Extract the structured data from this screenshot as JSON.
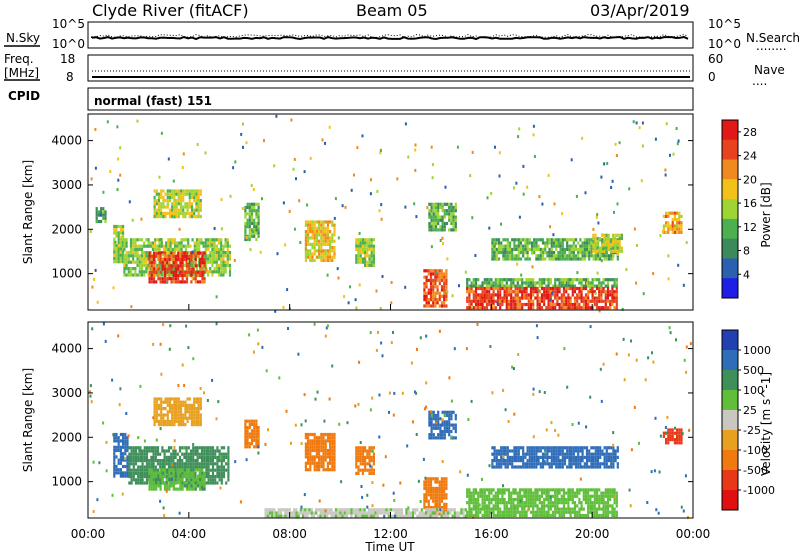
{
  "header": {
    "station": "Clyde River (fitACF)",
    "beam": "Beam 05",
    "date": "03/Apr/2019"
  },
  "strip_panels": {
    "nsky_label": "N.Sky",
    "nsearch_label": "N.Search",
    "nsearch_legend": "........",
    "log_top": "10^5",
    "log_bottom": "10^0",
    "freq_label_1": "Freq.",
    "freq_label_2": "[MHz]",
    "freq_ticks": [
      "18",
      "8"
    ],
    "nave_label": "Nave",
    "nave_legend": "....",
    "nave_ticks": [
      "60",
      "0"
    ],
    "cpid_label": "CPID",
    "cpid_value": "normal (fast) 151"
  },
  "colors": {
    "power_scale": [
      "#1e1ee6",
      "#2b5fb0",
      "#3c8a5a",
      "#4caf50",
      "#9ed534",
      "#f2c21a",
      "#f08a1e",
      "#e8431e",
      "#e01818"
    ],
    "velocity_scale": [
      "#2340b0",
      "#2f6db8",
      "#3f8f5a",
      "#5fbf3a",
      "#c8c8c0",
      "#e8a020",
      "#f07a10",
      "#e83818",
      "#e01010"
    ]
  },
  "chart_data": [
    {
      "type": "heatmap",
      "panel": "power",
      "xlabel": "",
      "ylabel": "Slant Range [km]",
      "xlim": [
        "00:00",
        "00:00"
      ],
      "ylim": [
        180,
        4600
      ],
      "yticks": [
        "1000",
        "2000",
        "3000",
        "4000"
      ],
      "colorbar_label": "Power [dB]",
      "colorbar_ticks": [
        "4",
        "8",
        "12",
        "16",
        "20",
        "24",
        "28"
      ],
      "colorbar_range": [
        0,
        30
      ],
      "blobs": [
        {
          "t0": 1.0,
          "t1": 1.4,
          "r0": 1300,
          "r1": 2100,
          "value": 14
        },
        {
          "t0": 1.4,
          "t1": 5.6,
          "r0": 1000,
          "r1": 1800,
          "value": 14
        },
        {
          "t0": 2.4,
          "t1": 4.6,
          "r0": 850,
          "r1": 1500,
          "value": 26
        },
        {
          "t0": 2.6,
          "t1": 4.5,
          "r0": 2300,
          "r1": 2900,
          "value": 16
        },
        {
          "t0": 0.3,
          "t1": 0.7,
          "r0": 2200,
          "r1": 2500,
          "value": 10
        },
        {
          "t0": 6.2,
          "t1": 6.8,
          "r0": 1800,
          "r1": 2600,
          "value": 12
        },
        {
          "t0": 8.6,
          "t1": 9.8,
          "r0": 1300,
          "r1": 2200,
          "value": 18
        },
        {
          "t0": 10.6,
          "t1": 11.3,
          "r0": 1200,
          "r1": 1800,
          "value": 14
        },
        {
          "t0": 13.3,
          "t1": 14.2,
          "r0": 250,
          "r1": 1100,
          "value": 24
        },
        {
          "t0": 13.5,
          "t1": 14.6,
          "r0": 2000,
          "r1": 2600,
          "value": 12
        },
        {
          "t0": 15.0,
          "t1": 21.0,
          "r0": 700,
          "r1": 900,
          "value": 12
        },
        {
          "t0": 15.0,
          "t1": 21.0,
          "r0": 250,
          "r1": 700,
          "value": 26
        },
        {
          "t0": 16.0,
          "t1": 21.0,
          "r0": 1300,
          "r1": 1800,
          "value": 12
        },
        {
          "t0": 20.0,
          "t1": 21.2,
          "r0": 1500,
          "r1": 1900,
          "value": 16
        },
        {
          "t0": 22.8,
          "t1": 23.5,
          "r0": 1900,
          "r1": 2400,
          "value": 20
        }
      ]
    },
    {
      "type": "heatmap",
      "panel": "velocity",
      "xlabel": "Time UT",
      "ylabel": "Slant Range [km]",
      "xticks": [
        "00:00",
        "04:00",
        "08:00",
        "12:00",
        "16:00",
        "20:00",
        "00:00"
      ],
      "ylim": [
        180,
        4600
      ],
      "yticks": [
        "1000",
        "2000",
        "3000",
        "4000"
      ],
      "colorbar_label": "Velocity [m s^-1]",
      "colorbar_ticks": [
        "1000",
        "500",
        "100",
        "25",
        "-25",
        "-100",
        "-500",
        "-1000"
      ],
      "blobs": [
        {
          "t0": 1.0,
          "t1": 1.6,
          "r0": 1100,
          "r1": 2100,
          "value": 700
        },
        {
          "t0": 1.6,
          "t1": 5.6,
          "r0": 1000,
          "r1": 1800,
          "value": 150
        },
        {
          "t0": 2.4,
          "t1": 4.6,
          "r0": 850,
          "r1": 1300,
          "value": 80
        },
        {
          "t0": 2.6,
          "t1": 4.5,
          "r0": 2300,
          "r1": 2900,
          "value": -60
        },
        {
          "t0": 6.2,
          "t1": 6.8,
          "r0": 1800,
          "r1": 2400,
          "value": -300
        },
        {
          "t0": 8.6,
          "t1": 9.8,
          "r0": 1300,
          "r1": 2100,
          "value": -300
        },
        {
          "t0": 10.6,
          "t1": 11.3,
          "r0": 1200,
          "r1": 1800,
          "value": -300
        },
        {
          "t0": 13.3,
          "t1": 14.2,
          "r0": 250,
          "r1": 1100,
          "value": -300
        },
        {
          "t0": 13.5,
          "t1": 14.6,
          "r0": 2000,
          "r1": 2600,
          "value": 700
        },
        {
          "t0": 15.0,
          "t1": 21.0,
          "r0": 250,
          "r1": 850,
          "value": 60
        },
        {
          "t0": 16.0,
          "t1": 21.0,
          "r0": 1300,
          "r1": 1800,
          "value": 700
        },
        {
          "t0": 22.8,
          "t1": 23.5,
          "r0": 1900,
          "r1": 2200,
          "value": -600
        },
        {
          "t0": 7.0,
          "t1": 15.0,
          "r0": 200,
          "r1": 400,
          "value": 10
        }
      ]
    }
  ]
}
